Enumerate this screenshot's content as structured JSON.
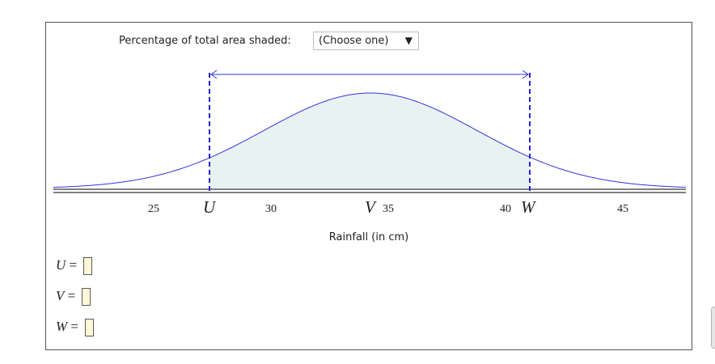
{
  "prompt": {
    "label": "Percentage of total area shaded:",
    "select_value": "(Choose one)",
    "select_arrow": "▼"
  },
  "axis": {
    "label": "Rainfall (in cm)",
    "ticks": [
      "25",
      "30",
      "35",
      "40",
      "45"
    ]
  },
  "markers": {
    "U": "U",
    "V": "V",
    "W": "W"
  },
  "answers": [
    {
      "var": "U",
      "eq": "=",
      "value": ""
    },
    {
      "var": "V",
      "eq": "=",
      "value": ""
    },
    {
      "var": "W",
      "eq": "=",
      "value": ""
    }
  ],
  "colors": {
    "curve": "#3333dd",
    "shade": "#e8f2f3",
    "baseline": "#000000",
    "dashed": "#2222cc"
  }
}
